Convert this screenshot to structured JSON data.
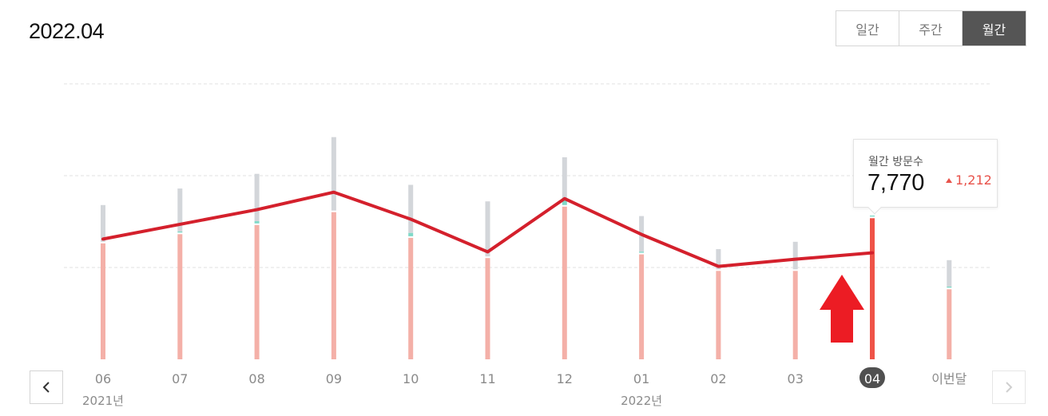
{
  "page": {
    "title": "2022.04"
  },
  "period_toggle": {
    "daily": "일간",
    "weekly": "주간",
    "monthly": "월간",
    "selected": "monthly"
  },
  "tooltip": {
    "label": "월간 방문수",
    "value": "7,770",
    "delta": "1,212"
  },
  "colors": {
    "bar_base": "#f4b0a8",
    "bar_base_selected": "#ef5348",
    "bar_top": "#d3d6da",
    "bar_top_selected": "#9aa3ad",
    "bar_mint": "#7fd9c8",
    "trend_line": "#d4202c",
    "arrow": "#ec1c24",
    "grid": "#e2e2e2"
  },
  "chart_data": {
    "type": "bar",
    "categories": [
      "06",
      "07",
      "08",
      "09",
      "10",
      "11",
      "12",
      "01",
      "02",
      "03",
      "04",
      "이번달"
    ],
    "year_labels": [
      {
        "text": "2021년",
        "at": "06"
      },
      {
        "text": "2022년",
        "at": "01"
      }
    ],
    "selected_category": "04",
    "series": [
      {
        "values": [
          6400,
          6900,
          7400,
          8100,
          6700,
          5600,
          8400,
          5800,
          4900,
          4900,
          7770,
          3900
        ]
      },
      {
        "values": [
          8400,
          9300,
          10100,
          12100,
          9500,
          8600,
          11000,
          7800,
          6000,
          6400,
          7770,
          5400
        ]
      },
      {
        "values": [
          0,
          60,
          120,
          0,
          180,
          0,
          400,
          60,
          0,
          0,
          60,
          60
        ]
      }
    ],
    "trend_values": [
      6550,
      7350,
      8150,
      9100,
      7630,
      5850,
      8750,
      6800,
      5060,
      5450,
      5800
    ],
    "ylim": [
      0,
      15000
    ],
    "grid_lines": [
      5000,
      10000,
      15000
    ],
    "grid": true
  }
}
